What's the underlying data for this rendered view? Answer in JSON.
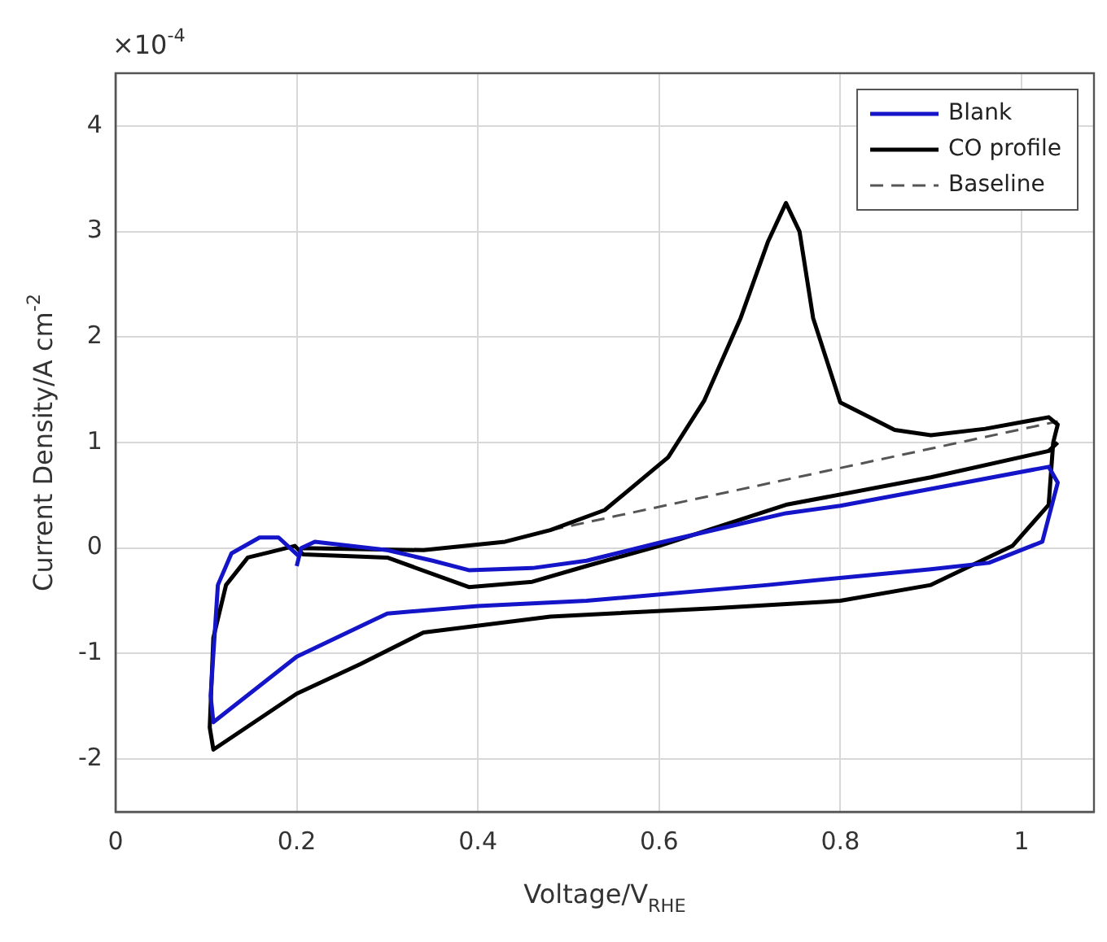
{
  "chart_data": {
    "type": "line",
    "xlabel": "Voltage/V$_{RHE}$",
    "ylabel": "Current Density/A cm$^{-2}$",
    "annotations": [
      "×10$^{-4}$"
    ],
    "xlim": [
      0,
      1.08
    ],
    "ylim": [
      -2.5,
      4.5
    ],
    "xticks": [
      0,
      0.2,
      0.4,
      0.6,
      0.8,
      1
    ],
    "yticks": [
      -2,
      -1,
      0,
      1,
      2,
      3,
      4
    ],
    "grid": true,
    "legend": "top right",
    "series": [
      {
        "name": "Blank",
        "color": "#1414c8",
        "x": [
          0.2,
          0.205,
          0.22,
          0.3,
          0.35,
          0.39,
          0.46,
          0.52,
          0.6,
          0.7,
          0.74,
          0.8,
          0.9,
          1.03,
          1.04,
          1.023,
          0.964,
          0.9,
          0.72,
          0.52,
          0.4,
          0.3,
          0.2,
          0.108,
          0.105,
          0.113,
          0.128,
          0.159,
          0.18,
          0.204
        ],
        "values": [
          -0.17,
          0.0,
          0.06,
          -0.02,
          -0.12,
          -0.21,
          -0.19,
          -0.12,
          0.05,
          0.25,
          0.33,
          0.4,
          0.56,
          0.77,
          0.62,
          0.06,
          -0.14,
          -0.2,
          -0.35,
          -0.5,
          -0.55,
          -0.62,
          -1.03,
          -1.65,
          -1.4,
          -0.35,
          -0.05,
          0.1,
          0.1,
          -0.09
        ]
      },
      {
        "name": "CO profile",
        "color": "#000000",
        "x": [
          0.205,
          0.34,
          0.43,
          0.48,
          0.54,
          0.61,
          0.65,
          0.69,
          0.72,
          0.74,
          0.755,
          0.77,
          0.8,
          0.86,
          0.9,
          0.96,
          1.03,
          1.04,
          1.035,
          1.03,
          0.99,
          0.9,
          0.8,
          0.66,
          0.48,
          0.34,
          0.27,
          0.2,
          0.108,
          0.104,
          0.108,
          0.122,
          0.146,
          0.17,
          0.198,
          0.207,
          0.3,
          0.39,
          0.46,
          0.52,
          0.6,
          0.74,
          0.9,
          1.03,
          1.04
        ],
        "values": [
          0.0,
          -0.02,
          0.06,
          0.17,
          0.36,
          0.86,
          1.4,
          2.18,
          2.9,
          3.27,
          3.0,
          2.18,
          1.38,
          1.12,
          1.07,
          1.13,
          1.24,
          1.17,
          1.0,
          0.41,
          0.02,
          -0.35,
          -0.5,
          -0.57,
          -0.65,
          -0.8,
          -1.1,
          -1.38,
          -1.91,
          -1.7,
          -0.85,
          -0.35,
          -0.09,
          -0.04,
          0.02,
          -0.06,
          -0.09,
          -0.37,
          -0.32,
          -0.17,
          0.02,
          0.41,
          0.67,
          0.92,
          1.0
        ]
      },
      {
        "name": "Baseline",
        "color": "#555555",
        "line_style": "dashed",
        "x": [
          0.48,
          1.04
        ],
        "values": [
          0.17,
          1.2
        ]
      }
    ]
  }
}
